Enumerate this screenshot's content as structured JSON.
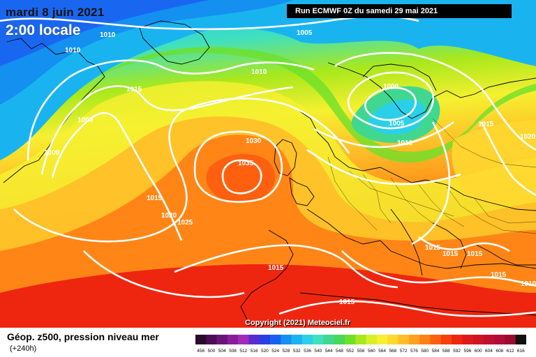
{
  "header": {
    "date": "mardi 8 juin 2021",
    "local_time": "2:00 locale",
    "run_info": "Run ECMWF 0Z du samedi 29 mai 2021"
  },
  "copyright": "Copyright (2021) Meteociel.fr",
  "footer": {
    "title": "Géop. z500, pression niveau mer",
    "lead_time": "(+240h)"
  },
  "isobar_labels": [
    "1010",
    "1010",
    "1005",
    "1015",
    "1010",
    "1000",
    "1000",
    "1030",
    "1035",
    "1000",
    "1005",
    "1010",
    "1015",
    "1015",
    "1020",
    "1025",
    "1015",
    "1015",
    "1015",
    "1015",
    "1015",
    "1015",
    "1010",
    "1020"
  ],
  "legend": {
    "ticks": [
      "456",
      "500",
      "504",
      "508",
      "512",
      "516",
      "520",
      "524",
      "528",
      "532",
      "536",
      "540",
      "544",
      "548",
      "552",
      "556",
      "560",
      "564",
      "568",
      "572",
      "576",
      "580",
      "584",
      "588",
      "592",
      "596",
      "600",
      "604",
      "608",
      "612",
      "616"
    ],
    "colors": [
      "#2a0a2a",
      "#4b0d55",
      "#6a1478",
      "#8a1c9c",
      "#a22bb8",
      "#5a2bd0",
      "#2a3fe0",
      "#1a60f0",
      "#1490f0",
      "#19b4f0",
      "#2ad0e8",
      "#3fe0c0",
      "#40d890",
      "#48d858",
      "#6ee02a",
      "#a8e81c",
      "#d8f02a",
      "#f6f030",
      "#ffd830",
      "#ffbe28",
      "#ffa020",
      "#ff8014",
      "#ff6010",
      "#f8400c",
      "#ee2610",
      "#e01a1a",
      "#d01424",
      "#c01030",
      "#b00c38",
      "#9a0a30",
      "#111111"
    ]
  }
}
